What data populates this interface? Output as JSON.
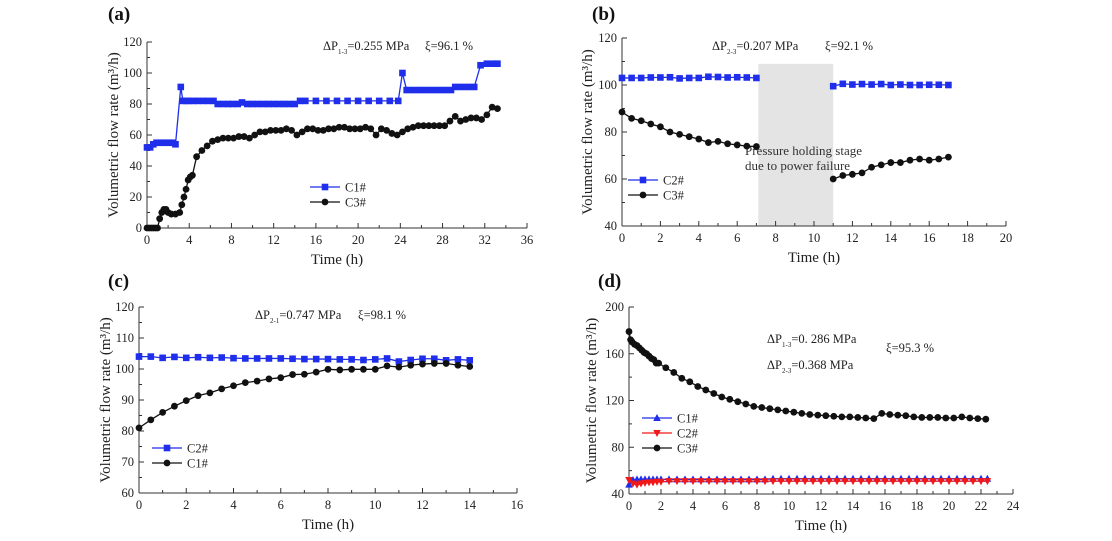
{
  "colors": {
    "blue": "#1f2eea",
    "black": "#111111",
    "red": "#f01818",
    "shade": "#e4e4e4",
    "axis": "#333333"
  },
  "chart_data": [
    {
      "panel": "(a)",
      "type": "line",
      "xlabel": "Time (h)",
      "ylabel": "Volumetric flow rate (m³/h)",
      "xlim": [
        0,
        36
      ],
      "ylim": [
        0,
        120
      ],
      "xticks": [
        0,
        4,
        8,
        12,
        16,
        20,
        24,
        28,
        32,
        36
      ],
      "yticks": [
        0,
        20,
        40,
        60,
        80,
        100,
        120
      ],
      "annotations": [
        {
          "prefix": "ΔP",
          "sub": "1-3",
          "suffix": "=0.255 MPa"
        },
        {
          "text": "ξ=96.1 %"
        }
      ],
      "legend": "center-left",
      "series": [
        {
          "name": "C1#",
          "color": "blue",
          "marker": "square",
          "x": [
            0,
            0.3,
            0.6,
            0.9,
            1.2,
            1.5,
            1.8,
            2.1,
            2.4,
            2.7,
            3.2,
            3.4,
            3.7,
            4.0,
            4.4,
            4.8,
            5.3,
            5.8,
            6.3,
            6.7,
            7.2,
            7.7,
            8.1,
            8.6,
            9.0,
            9.5,
            10.0,
            10.5,
            11.0,
            11.5,
            12.0,
            12.5,
            13.0,
            13.5,
            14.0,
            14.5,
            15.0,
            16,
            17,
            18,
            19,
            20,
            21,
            22,
            23,
            23.8,
            24.2,
            24.6,
            25.2,
            25.8,
            26.4,
            27.0,
            27.6,
            28.2,
            28.8,
            29.2,
            29.8,
            30.4,
            31.0,
            31.6,
            32.2,
            32.8,
            33.2
          ],
          "y": [
            52,
            52,
            54,
            55,
            55,
            55,
            55,
            55,
            55,
            54,
            91,
            82,
            82,
            82,
            82,
            82,
            82,
            82,
            82,
            80,
            80,
            80,
            80,
            80,
            81,
            80,
            80,
            80,
            80,
            80,
            80,
            80,
            80,
            80,
            80,
            82,
            82,
            82,
            82,
            82,
            82,
            82,
            82,
            82,
            82,
            82,
            100,
            89,
            89,
            89,
            89,
            89,
            89,
            89,
            89,
            91,
            91,
            91,
            91,
            105,
            106,
            106,
            106
          ]
        },
        {
          "name": "C3#",
          "color": "black",
          "marker": "circle",
          "x": [
            0,
            0.2,
            0.4,
            0.6,
            0.8,
            1.0,
            1.2,
            1.4,
            1.6,
            1.8,
            2.0,
            2.3,
            2.7,
            3.1,
            3.3,
            3.5,
            3.7,
            3.9,
            4.1,
            4.3,
            4.7,
            5.2,
            5.7,
            6.2,
            6.7,
            7.2,
            7.7,
            8.2,
            8.7,
            9.2,
            9.7,
            10.2,
            10.7,
            11.2,
            11.7,
            12.2,
            12.7,
            13.2,
            13.7,
            14.2,
            14.7,
            15.2,
            15.7,
            16.2,
            16.7,
            17.2,
            17.7,
            18.2,
            18.7,
            19.2,
            19.7,
            20.2,
            20.7,
            21.2,
            21.7,
            22.2,
            22.7,
            23.2,
            23.7,
            24.2,
            24.7,
            25.2,
            25.7,
            26.2,
            26.7,
            27.2,
            27.7,
            28.2,
            28.7,
            29.2,
            29.7,
            30.2,
            30.7,
            31.2,
            31.7,
            32.2,
            32.7,
            33.2
          ],
          "y": [
            0,
            0,
            0,
            0,
            0,
            0,
            6,
            10,
            12,
            12,
            10,
            9,
            9,
            10,
            15,
            20,
            25,
            31,
            33,
            34,
            46,
            50,
            53,
            56,
            57,
            58,
            58,
            58,
            59,
            59,
            58,
            60,
            62,
            62,
            63,
            63,
            63,
            64,
            63,
            60,
            62,
            64,
            64,
            63,
            63,
            64,
            64,
            65,
            65,
            64,
            64,
            64,
            65,
            64,
            60,
            64,
            63,
            61,
            60,
            62,
            64,
            65,
            66,
            66,
            66,
            66,
            66,
            66,
            69,
            72,
            69,
            70,
            71,
            71,
            70,
            73,
            78,
            77
          ]
        }
      ]
    },
    {
      "panel": "(b)",
      "type": "line",
      "xlabel": "Time (h)",
      "ylabel": "Volumetric flow rate (m³/h)",
      "xlim": [
        0,
        20
      ],
      "ylim": [
        40,
        120
      ],
      "xticks": [
        0,
        2,
        4,
        6,
        8,
        10,
        12,
        14,
        16,
        18,
        20
      ],
      "yticks": [
        40,
        60,
        80,
        100,
        120
      ],
      "annotations": [
        {
          "prefix": "ΔP",
          "sub": "2-3",
          "suffix": "=0.207 MPa"
        },
        {
          "text": "ξ=92.1 %"
        }
      ],
      "shaded_region": {
        "x": [
          7.1,
          11.0
        ],
        "y_top": 109,
        "label_lines": [
          "Pressure holding stage",
          "due to power failure"
        ]
      },
      "legend": "bottom-left",
      "series": [
        {
          "name": "C2#",
          "color": "blue",
          "marker": "square",
          "x": [
            0,
            0.5,
            1,
            1.5,
            2,
            2.5,
            3,
            3.5,
            4,
            4.5,
            5,
            5.5,
            6,
            6.5,
            7,
            11,
            11.5,
            12,
            12.5,
            13,
            13.5,
            14,
            14.5,
            15,
            15.5,
            16,
            16.5,
            17
          ],
          "y": [
            103,
            103,
            103,
            103.2,
            103.2,
            103.3,
            102.8,
            103,
            103,
            103.5,
            103.4,
            103.2,
            103.3,
            103.2,
            103,
            99.5,
            100.5,
            100.2,
            100.4,
            100.2,
            100.4,
            100,
            100.2,
            100,
            100,
            100.1,
            100.1,
            100
          ]
        },
        {
          "name": "C3#",
          "color": "black",
          "marker": "circle",
          "x": [
            0,
            0.5,
            1,
            1.5,
            2,
            2.5,
            3,
            3.5,
            4,
            4.5,
            5,
            5.5,
            6,
            6.5,
            7,
            11,
            11.5,
            12,
            12.5,
            13,
            13.5,
            14,
            14.5,
            15,
            15.5,
            16,
            16.5,
            17
          ],
          "y": [
            88.5,
            85.8,
            84.8,
            83.4,
            82.2,
            80,
            79,
            78,
            77,
            75.5,
            76,
            75,
            74.5,
            74,
            73.8,
            60,
            61.5,
            62,
            62.6,
            65,
            66,
            67,
            67,
            68,
            68.5,
            68,
            68.5,
            69.3
          ]
        }
      ]
    },
    {
      "panel": "(c)",
      "type": "line",
      "xlabel": "Time (h)",
      "ylabel": "Volumetric flow rate (m³/h)",
      "xlim": [
        0,
        16
      ],
      "ylim": [
        60,
        120
      ],
      "xticks": [
        0,
        2,
        4,
        6,
        8,
        10,
        12,
        14,
        16
      ],
      "yticks": [
        60,
        70,
        80,
        90,
        100,
        110,
        120
      ],
      "annotations": [
        {
          "prefix": "ΔP",
          "sub": "2-1",
          "suffix": "=0.747 MPa"
        },
        {
          "text": "ξ=98.1 %"
        }
      ],
      "legend": "bottom-left",
      "series": [
        {
          "name": "C2#",
          "color": "blue",
          "marker": "square",
          "x": [
            0,
            0.5,
            1,
            1.5,
            2,
            2.5,
            3,
            3.5,
            4,
            4.5,
            5,
            5.5,
            6,
            6.5,
            7,
            7.5,
            8,
            8.5,
            9,
            9.5,
            10,
            10.5,
            11,
            11.5,
            12,
            12.5,
            13,
            13.5,
            14
          ],
          "y": [
            104,
            104,
            103.6,
            103.9,
            103.6,
            103.8,
            103.6,
            103.7,
            103.5,
            103.4,
            103.4,
            103.4,
            103.4,
            103.3,
            103.2,
            103.2,
            103.2,
            103.1,
            103.1,
            102.9,
            103.1,
            103.4,
            102.4,
            102.9,
            103.3,
            103.3,
            102.8,
            103.1,
            102.8
          ]
        },
        {
          "name": "C1#",
          "color": "black",
          "marker": "circle",
          "x": [
            0,
            0.5,
            1,
            1.5,
            2,
            2.5,
            3,
            3.5,
            4,
            4.5,
            5,
            5.5,
            6,
            6.5,
            7,
            7.5,
            8,
            8.5,
            9,
            9.5,
            10,
            10.5,
            11,
            11.5,
            12,
            12.5,
            13,
            13.5,
            14
          ],
          "y": [
            81,
            83.6,
            86,
            88,
            89.8,
            91.4,
            92.3,
            93.6,
            94.6,
            95.6,
            96.1,
            96.8,
            97.2,
            98.2,
            98.3,
            99,
            99.9,
            99.7,
            99.9,
            99.9,
            99.9,
            101,
            100.6,
            101.2,
            101.6,
            101.8,
            101.8,
            101.2,
            100.8
          ]
        }
      ]
    },
    {
      "panel": "(d)",
      "type": "line",
      "xlabel": "Time (h)",
      "ylabel": "Volumetric flow rate (m³/h)",
      "xlim": [
        0,
        24
      ],
      "ylim": [
        40,
        200
      ],
      "xticks": [
        0,
        2,
        4,
        6,
        8,
        10,
        12,
        14,
        16,
        18,
        20,
        22,
        24
      ],
      "yticks": [
        40,
        80,
        120,
        160,
        200
      ],
      "annotations": [
        {
          "prefix": "ΔP",
          "sub": "1-3",
          "suffix": "=0. 286 MPa"
        },
        {
          "prefix": "ΔP",
          "sub": "2-3",
          "suffix": "=0.368 MPa"
        },
        {
          "text": "ξ=95.3 %"
        }
      ],
      "legend": "center-left",
      "series": [
        {
          "name": "C1#",
          "color": "blue",
          "marker": "triangle-up",
          "x": [
            0,
            0.25,
            0.5,
            0.75,
            1,
            1.25,
            1.5,
            1.75,
            2,
            2.5,
            3,
            3.5,
            4,
            4.5,
            5,
            5.5,
            6,
            6.5,
            7,
            7.5,
            8,
            8.5,
            9,
            9.5,
            10,
            10.5,
            11,
            11.5,
            12,
            12.5,
            13,
            13.5,
            14,
            14.5,
            15,
            15.5,
            16,
            16.5,
            17,
            17.5,
            18,
            18.5,
            19,
            19.5,
            20,
            20.5,
            21,
            21.5,
            22,
            22.4
          ],
          "y": [
            48,
            52,
            52.5,
            52.5,
            52.5,
            52.5,
            52.5,
            52.5,
            52.5,
            52.5,
            52.5,
            52.5,
            52.5,
            52.5,
            52.5,
            52.5,
            52.5,
            52.5,
            52.5,
            52.5,
            52.5,
            52.5,
            53,
            53,
            53,
            53,
            53,
            53,
            53,
            53,
            53,
            53,
            53,
            53,
            53,
            53,
            53,
            53,
            53,
            53,
            53,
            53,
            53,
            53,
            53,
            53,
            53,
            53,
            53,
            53
          ]
        },
        {
          "name": "C2#",
          "color": "red",
          "marker": "triangle-down",
          "x": [
            0,
            0.25,
            0.5,
            0.75,
            1,
            1.25,
            1.5,
            1.75,
            2,
            2.5,
            3,
            3.5,
            4,
            4.5,
            5,
            5.5,
            6,
            6.5,
            7,
            7.5,
            8,
            8.5,
            9,
            9.5,
            10,
            10.5,
            11,
            11.5,
            12,
            12.5,
            13,
            13.5,
            14,
            14.5,
            15,
            15.5,
            16,
            16.5,
            17,
            17.5,
            18,
            18.5,
            19,
            19.5,
            20,
            20.5,
            21,
            21.5,
            22,
            22.4
          ],
          "y": [
            52,
            49,
            48,
            49,
            49.5,
            50,
            50,
            50.5,
            50.5,
            51,
            51,
            51,
            51,
            51,
            51,
            51,
            51,
            51,
            51,
            51,
            51,
            51,
            51,
            51,
            51,
            51,
            51,
            51,
            51,
            51,
            51,
            51,
            51,
            51,
            51,
            51,
            51,
            51,
            51,
            51,
            51,
            51,
            51,
            51,
            51,
            51,
            51,
            51,
            51,
            51
          ]
        },
        {
          "name": "C3#",
          "color": "black",
          "marker": "circle",
          "x": [
            0,
            0.1,
            0.2,
            0.35,
            0.5,
            0.65,
            0.8,
            0.95,
            1.1,
            1.25,
            1.4,
            1.55,
            1.7,
            1.85,
            2.3,
            2.8,
            3.3,
            3.8,
            4.3,
            4.8,
            5.3,
            5.8,
            6.3,
            6.8,
            7.3,
            7.8,
            8.3,
            8.8,
            9.3,
            9.8,
            10.3,
            10.8,
            11.3,
            11.8,
            12.3,
            12.8,
            13.3,
            13.8,
            14.3,
            14.8,
            15.3,
            15.8,
            16.3,
            16.8,
            17.3,
            17.8,
            18.3,
            18.8,
            19.3,
            19.8,
            20.3,
            20.8,
            21.3,
            21.8,
            22.3
          ],
          "y": [
            179,
            172,
            170,
            168,
            167,
            165,
            163,
            161,
            160,
            158,
            156,
            155,
            152,
            152,
            148,
            144,
            139,
            136,
            132,
            129,
            126,
            123,
            121,
            119,
            117,
            115,
            114,
            113,
            112,
            111,
            110,
            109,
            108,
            107.5,
            107,
            106.5,
            106,
            106,
            105.5,
            105,
            104.5,
            109,
            108,
            107.5,
            107,
            106,
            105.5,
            105.5,
            105.5,
            105,
            105,
            106,
            105,
            104.5,
            104
          ]
        }
      ]
    }
  ]
}
